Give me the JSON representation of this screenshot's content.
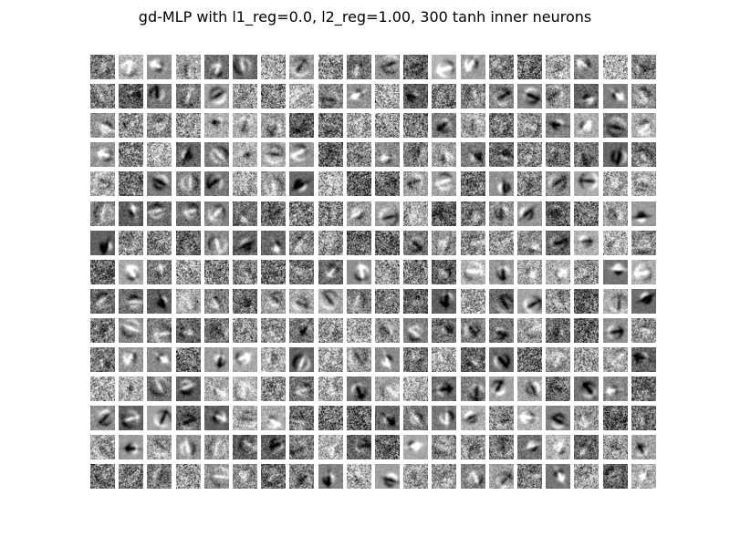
{
  "figure": {
    "title": "gd-MLP with l1_reg=0.0, l2_reg=1.00, 300 tanh inner neurons"
  },
  "grid": {
    "rows": 15,
    "cols": 20,
    "tile_count": 300,
    "colormap": "gray",
    "background_color": "#ffffff"
  }
}
